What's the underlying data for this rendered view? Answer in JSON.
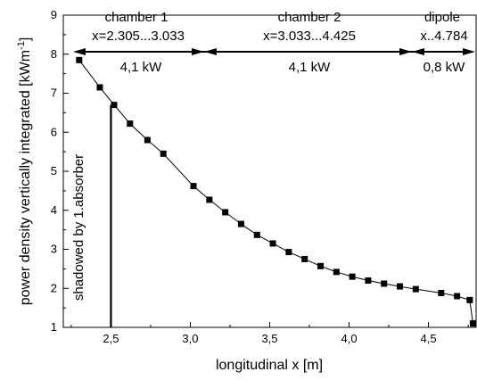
{
  "chart_data": {
    "type": "scatter",
    "title": "",
    "xlabel": "longitudinal x [m]",
    "ylabel_main": "power density vertically integrated [kWm",
    "ylabel_sup": "-1",
    "ylabel_end": "]",
    "xlim": [
      2.2,
      4.8
    ],
    "ylim": [
      1,
      9
    ],
    "x_ticks": [
      {
        "v": 2.5,
        "label": "2,5"
      },
      {
        "v": 3.0,
        "label": "3,0"
      },
      {
        "v": 3.5,
        "label": "3,5"
      },
      {
        "v": 4.0,
        "label": "4,0"
      },
      {
        "v": 4.5,
        "label": "4,5"
      }
    ],
    "y_ticks": [
      {
        "v": 1,
        "label": "1"
      },
      {
        "v": 2,
        "label": "2"
      },
      {
        "v": 3,
        "label": "3"
      },
      {
        "v": 4,
        "label": "4"
      },
      {
        "v": 5,
        "label": "5"
      },
      {
        "v": 6,
        "label": "6"
      },
      {
        "v": 7,
        "label": "7"
      },
      {
        "v": 8,
        "label": "8"
      },
      {
        "v": 9,
        "label": "9"
      }
    ],
    "grid": false,
    "series": [
      {
        "x": [
          2.3,
          2.43,
          2.52,
          2.62,
          2.73,
          2.83,
          3.02,
          3.12,
          3.22,
          3.32,
          3.42,
          3.52,
          3.62,
          3.72,
          3.82,
          3.92,
          4.02,
          4.12,
          4.22,
          4.32,
          4.42,
          4.58,
          4.68,
          4.76,
          4.78
        ],
        "y": [
          7.85,
          7.15,
          6.7,
          6.22,
          5.8,
          5.45,
          4.62,
          4.27,
          3.95,
          3.65,
          3.37,
          3.15,
          2.93,
          2.75,
          2.57,
          2.42,
          2.3,
          2.2,
          2.12,
          2.05,
          1.98,
          1.88,
          1.8,
          1.7,
          1.1
        ]
      }
    ],
    "shadow_line": {
      "x": 2.5,
      "y_top": 6.7
    },
    "annotations": {
      "shadow_text": "shadowed by 1.absorber",
      "sections": [
        {
          "name": "chamber 1",
          "range": "x=2.305...3.033",
          "power": "4,1 kW"
        },
        {
          "name": "chamber 2",
          "range": "x=3.033...4.425",
          "power": "4,1 kW"
        },
        {
          "name": "dipole",
          "range": "x..4.784",
          "power": "0,8 kW"
        }
      ]
    }
  }
}
